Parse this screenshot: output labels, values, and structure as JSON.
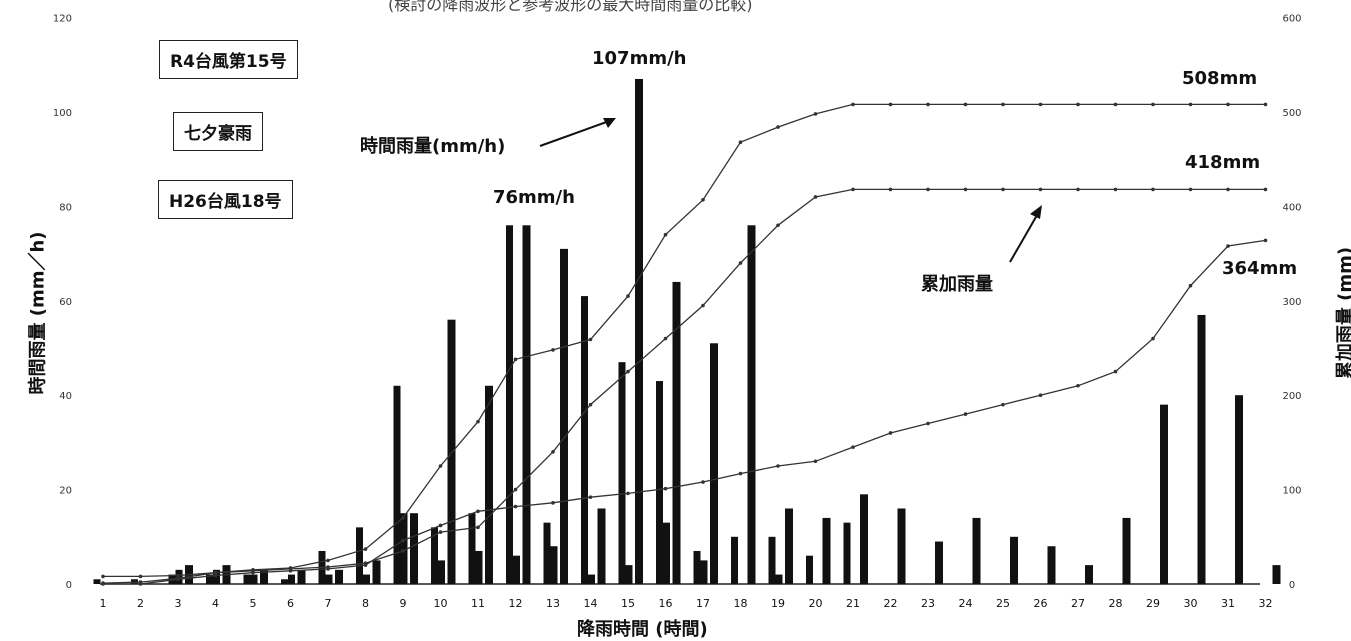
{
  "chart_data": {
    "type": "bar",
    "title": "",
    "xlabel": "降雨時間 (時間)",
    "ylabel": "時間雨量 (mm/h)",
    "y2label": "累加雨量 (mm)",
    "categories": [
      "1",
      "2",
      "3",
      "4",
      "5",
      "6",
      "7",
      "8",
      "9",
      "10",
      "11",
      "12",
      "13",
      "14",
      "15",
      "16",
      "17",
      "18",
      "19",
      "20",
      "21",
      "22",
      "23",
      "24",
      "25",
      "26",
      "27",
      "28",
      "29",
      "30",
      "31",
      "32"
    ],
    "ylim": [
      0,
      120
    ],
    "yticks": [
      0,
      20,
      40,
      60,
      80,
      100,
      120
    ],
    "y2lim": [
      0,
      600
    ],
    "y2ticks": [
      0,
      100,
      200,
      300,
      400,
      500,
      600
    ],
    "grid": false,
    "bar_series": [
      {
        "name": "R4台風第15号",
        "values": [
          0,
          0,
          4,
          4,
          3,
          3,
          3,
          5,
          15,
          56,
          42,
          76,
          71,
          16,
          107,
          64,
          51,
          76,
          16,
          14,
          19,
          16,
          9,
          14,
          10,
          8,
          4,
          14,
          38,
          57,
          40,
          4
        ]
      },
      {
        "name": "七夕豪雨",
        "values": [
          1,
          1,
          2,
          2,
          2,
          1,
          7,
          12,
          42,
          12,
          15,
          76,
          13,
          61,
          47,
          43,
          7,
          10,
          10,
          6,
          13,
          0,
          0,
          0,
          0,
          0,
          0,
          0,
          0,
          0,
          0,
          0
        ]
      },
      {
        "name": "H26台風18号",
        "values": [
          0,
          0,
          3,
          3,
          2,
          2,
          2,
          2,
          15,
          5,
          7,
          6,
          8,
          2,
          4,
          13,
          5,
          0,
          2,
          0,
          0,
          0,
          0,
          0,
          0,
          0,
          0,
          0,
          0,
          0,
          0,
          0
        ]
      }
    ],
    "line_series": [
      {
        "name": "R4台風第15号",
        "values": [
          8,
          8,
          9,
          12,
          15,
          17,
          25,
          37,
          70,
          125,
          172,
          238,
          248,
          259,
          305,
          370,
          407,
          468,
          484,
          498,
          508,
          508,
          508,
          508,
          508,
          508,
          508,
          508,
          508,
          508,
          508,
          508
        ]
      },
      {
        "name": "七夕豪雨",
        "values": [
          1,
          2,
          6,
          12,
          14,
          16,
          18,
          22,
          35,
          55,
          60,
          100,
          140,
          190,
          225,
          260,
          295,
          340,
          380,
          410,
          418,
          418,
          418,
          418,
          418,
          418,
          418,
          418,
          418,
          418,
          418,
          418
        ]
      },
      {
        "name": "H26台風18号",
        "values": [
          0,
          0,
          5,
          9,
          12,
          14,
          16,
          20,
          46,
          62,
          77,
          82,
          86,
          92,
          96,
          101,
          108,
          117,
          125,
          130,
          145,
          160,
          170,
          180,
          190,
          200,
          210,
          225,
          260,
          316,
          358,
          364
        ]
      }
    ],
    "annotations": [
      "107mm/h",
      "76mm/h",
      "508mm",
      "418mm",
      "364mm",
      "時間雨量(mm/h)",
      "累加雨量"
    ]
  },
  "legend": {
    "r4": "R4台風第15号",
    "tanabata": "七夕豪雨",
    "h26": "H26台風18号"
  },
  "labels": {
    "peak_107": "107mm/h",
    "peak_76": "76mm/h",
    "total_508": "508mm",
    "total_418": "418mm",
    "total_364": "364mm",
    "hourly_label": "時間雨量(mm/h)",
    "cumulative_label": "累加雨量",
    "y_left_title": "時間雨量 (mm／h)",
    "y_right_title": "累加雨量 (mm)",
    "x_title": "降雨時間 (時間)",
    "top_title": "(検討の降雨波形と参考波形の最大時間雨量の比較)"
  }
}
